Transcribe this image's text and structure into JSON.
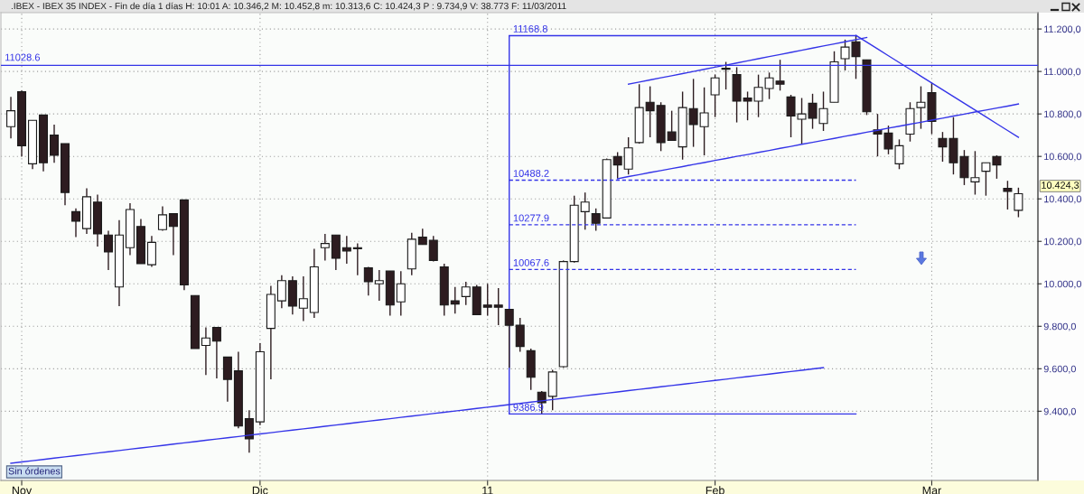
{
  "chart_data": {
    "type": "candlestick",
    "title": ".IBEX - IBEX 35 INDEX - Fin de día 1 días H: 10:01 A: 10.346,2 M: 10.452,8 m: 10.313,6 C: 10.424,3 P : 9.734,9 V: 38.773 F: 11/03/2011",
    "categories": [
      null,
      "Nov",
      null,
      null,
      null,
      null,
      null,
      null,
      null,
      null,
      null,
      null,
      null,
      null,
      null,
      null,
      null,
      null,
      null,
      null,
      null,
      null,
      null,
      "Dic",
      null,
      null,
      null,
      null,
      null,
      null,
      null,
      null,
      null,
      null,
      null,
      null,
      null,
      null,
      null,
      null,
      null,
      null,
      null,
      null,
      "11",
      null,
      null,
      null,
      null,
      null,
      null,
      null,
      null,
      null,
      null,
      null,
      null,
      null,
      null,
      null,
      null,
      null,
      null,
      null,
      null,
      "Feb",
      null,
      null,
      null,
      null,
      null,
      null,
      null,
      null,
      null,
      null,
      null,
      null,
      null,
      null,
      null,
      null,
      null,
      null,
      null,
      "Mar",
      null,
      null,
      null,
      null,
      null,
      null,
      null,
      null
    ],
    "ohlc": [
      [
        10740,
        10880,
        10685,
        10815
      ],
      [
        10905,
        10910,
        10600,
        10650
      ],
      [
        10565,
        10770,
        10540,
        10770
      ],
      [
        10795,
        10795,
        10530,
        10570
      ],
      [
        10700,
        10750,
        10570,
        10605
      ],
      [
        10660,
        10660,
        10370,
        10430
      ],
      [
        10340,
        10355,
        10220,
        10295
      ],
      [
        10260,
        10450,
        10235,
        10410
      ],
      [
        10385,
        10420,
        10175,
        10235
      ],
      [
        10230,
        10250,
        10065,
        10150
      ],
      [
        9985,
        10300,
        9895,
        10230
      ],
      [
        10170,
        10380,
        10135,
        10350
      ],
      [
        10270,
        10305,
        10095,
        10095
      ],
      [
        10090,
        10225,
        10080,
        10195
      ],
      [
        10255,
        10365,
        10250,
        10325
      ],
      [
        10330,
        10330,
        10135,
        10270
      ],
      [
        10395,
        10395,
        9970,
        9995
      ],
      [
        9945,
        9945,
        9695,
        9695
      ],
      [
        9710,
        9795,
        9570,
        9745
      ],
      [
        9795,
        9795,
        9555,
        9730
      ],
      [
        9655,
        9655,
        9445,
        9550
      ],
      [
        9590,
        9680,
        9320,
        9330
      ],
      [
        9365,
        9405,
        9205,
        9270
      ],
      [
        9350,
        9720,
        9335,
        9680
      ],
      [
        9790,
        9990,
        9550,
        9950
      ],
      [
        9920,
        10040,
        9885,
        10015
      ],
      [
        10015,
        10035,
        9855,
        9895
      ],
      [
        9885,
        10035,
        9825,
        9930
      ],
      [
        9865,
        10165,
        9840,
        10080
      ],
      [
        10170,
        10235,
        10110,
        10190
      ],
      [
        10230,
        10230,
        10065,
        10120
      ],
      [
        10170,
        10225,
        10095,
        10155
      ],
      [
        10170,
        10190,
        10040,
        10165
      ],
      [
        10075,
        10080,
        9945,
        10010
      ],
      [
        10000,
        10065,
        9920,
        10015
      ],
      [
        10060,
        10060,
        9850,
        9900
      ],
      [
        9915,
        10060,
        9850,
        10000
      ],
      [
        10070,
        10240,
        10040,
        10210
      ],
      [
        10220,
        10260,
        10185,
        10185
      ],
      [
        10205,
        10225,
        10105,
        10110
      ],
      [
        10080,
        10095,
        9850,
        9900
      ],
      [
        9920,
        9985,
        9860,
        9905
      ],
      [
        9940,
        10010,
        9900,
        9985
      ],
      [
        9985,
        9995,
        9855,
        9855
      ],
      [
        9900,
        10000,
        9850,
        9890
      ],
      [
        9900,
        9980,
        9805,
        9890
      ],
      [
        9880,
        9880,
        9605,
        9805
      ],
      [
        9805,
        9840,
        9680,
        9705
      ],
      [
        9685,
        9695,
        9500,
        9560
      ],
      [
        9490,
        9495,
        9386.9,
        9440
      ],
      [
        9470,
        9595,
        9405,
        9585
      ],
      [
        9610,
        10110,
        9605,
        10105
      ],
      [
        10105,
        10415,
        10100,
        10370
      ],
      [
        10340,
        10430,
        10255,
        10385
      ],
      [
        10330,
        10355,
        10250,
        10285
      ],
      [
        10310,
        10590,
        10310,
        10585
      ],
      [
        10600,
        10620,
        10495,
        10560
      ],
      [
        10540,
        10690,
        10515,
        10640
      ],
      [
        10665,
        10940,
        10660,
        10830
      ],
      [
        10855,
        10930,
        10690,
        10815
      ],
      [
        10840,
        10855,
        10625,
        10665
      ],
      [
        10715,
        10815,
        10675,
        10675
      ],
      [
        10645,
        10905,
        10585,
        10830
      ],
      [
        10825,
        10965,
        10645,
        10750
      ],
      [
        10740,
        10925,
        10605,
        10805
      ],
      [
        10890,
        10985,
        10785,
        10970
      ],
      [
        11010,
        11045,
        10915,
        11015
      ],
      [
        10985,
        11020,
        10760,
        10860
      ],
      [
        10875,
        10905,
        10770,
        10860
      ],
      [
        10860,
        10985,
        10785,
        10925
      ],
      [
        10920,
        10995,
        10870,
        10970
      ],
      [
        10955,
        11055,
        10910,
        10940
      ],
      [
        10880,
        10890,
        10690,
        10790
      ],
      [
        10775,
        10875,
        10660,
        10800
      ],
      [
        10850,
        10895,
        10730,
        10780
      ],
      [
        10755,
        10905,
        10720,
        10825
      ],
      [
        10855,
        11095,
        10855,
        11045
      ],
      [
        11060,
        11150,
        11005,
        11115
      ],
      [
        11140,
        11168.8,
        10965,
        11070
      ],
      [
        11055,
        11055,
        10795,
        10810
      ],
      [
        10725,
        10800,
        10600,
        10705
      ],
      [
        10710,
        10745,
        10610,
        10635
      ],
      [
        10565,
        10680,
        10540,
        10650
      ],
      [
        10705,
        10855,
        10670,
        10825
      ],
      [
        10830,
        10930,
        10730,
        10855
      ],
      [
        10900,
        10945,
        10705,
        10765
      ],
      [
        10685,
        10715,
        10575,
        10645
      ],
      [
        10685,
        10785,
        10515,
        10570
      ],
      [
        10600,
        10630,
        10465,
        10500
      ],
      [
        10480,
        10625,
        10420,
        10500
      ],
      [
        10530,
        10570,
        10415,
        10570
      ],
      [
        10600,
        10605,
        10495,
        10560
      ],
      [
        10450,
        10485,
        10350,
        10435
      ],
      [
        10346.2,
        10452.8,
        10313.6,
        10424.3
      ]
    ],
    "colors": [
      "#ffffff",
      "#2d1c20",
      "#ffffff",
      "#2d1c20",
      "#2d1c20",
      "#2d1c20",
      "#2d1c20",
      "#ffffff",
      "#2d1c20",
      "#2d1c20",
      "#ffffff",
      "#ffffff",
      "#2d1c20",
      "#ffffff",
      "#ffffff",
      "#2d1c20",
      "#2d1c20",
      "#2d1c20",
      "#ffffff",
      "#2d1c20",
      "#2d1c20",
      "#2d1c20",
      "#2d1c20",
      "#ffffff",
      "#ffffff",
      "#ffffff",
      "#2d1c20",
      "#ffffff",
      "#ffffff",
      "#ffffff",
      "#2d1c20",
      "#2d1c20",
      "#2d1c20",
      "#2d1c20",
      "#ffffff",
      "#2d1c20",
      "#ffffff",
      "#ffffff",
      "#2d1c20",
      "#2d1c20",
      "#2d1c20",
      "#2d1c20",
      "#ffffff",
      "#2d1c20",
      "#2d1c20",
      "#2d1c20",
      "#2d1c20",
      "#2d1c20",
      "#2d1c20",
      "#2d1c20",
      "#ffffff",
      "#ffffff",
      "#ffffff",
      "#ffffff",
      "#2d1c20",
      "#ffffff",
      "#2d1c20",
      "#ffffff",
      "#ffffff",
      "#2d1c20",
      "#2d1c20",
      "#2d1c20",
      "#ffffff",
      "#2d1c20",
      "#ffffff",
      "#ffffff",
      "#ffffff",
      "#2d1c20",
      "#2d1c20",
      "#ffffff",
      "#ffffff",
      "#2d1c20",
      "#2d1c20",
      "#ffffff",
      "#2d1c20",
      "#ffffff",
      "#ffffff",
      "#ffffff",
      "#2d1c20",
      "#2d1c20",
      "#2d1c20",
      "#2d1c20",
      "#ffffff",
      "#ffffff",
      "#ffffff",
      "#2d1c20",
      "#2d1c20",
      "#2d1c20",
      "#2d1c20",
      "#ffffff",
      "#ffffff",
      "#2d1c20",
      "#2d1c20",
      "#ffffff"
    ],
    "series": [
      {
        "type": "line",
        "color": "#3434e8",
        "values": [
          9155,
          9161,
          9167,
          9173,
          9179,
          9185,
          9191,
          9197,
          9203,
          9209,
          9215,
          9221,
          9227,
          9233,
          9239,
          9245,
          9251,
          9257,
          9263,
          9269,
          9275,
          9281,
          9287,
          9293,
          9299,
          9305,
          9311,
          9317,
          9323,
          9329,
          9335,
          9341,
          9347,
          9353,
          9359,
          9365,
          9371,
          9377,
          9383,
          9389,
          9395,
          9401,
          9407,
          9413,
          9419,
          9425,
          9431,
          9437,
          9443,
          9449,
          9455,
          9461,
          9467,
          9473,
          9479,
          9485,
          9491,
          9497,
          9503,
          9509,
          9515,
          9521,
          9527,
          9533,
          9539,
          9545,
          9551,
          9557,
          9563,
          9569,
          9575,
          9581,
          9587,
          9593,
          9599,
          9605,
          null,
          null,
          null,
          null,
          null,
          null,
          null,
          null,
          null,
          null,
          null,
          null,
          null,
          null,
          null,
          null,
          null,
          null
        ]
      },
      {
        "type": "line",
        "color": "#3434e8",
        "values": [
          null,
          null,
          null,
          null,
          null,
          null,
          null,
          null,
          null,
          null,
          null,
          null,
          null,
          null,
          null,
          null,
          null,
          null,
          null,
          null,
          null,
          null,
          null,
          null,
          null,
          null,
          null,
          null,
          null,
          null,
          null,
          null,
          null,
          null,
          null,
          null,
          null,
          null,
          null,
          null,
          null,
          null,
          null,
          null,
          null,
          null,
          null,
          null,
          null,
          null,
          null,
          null,
          null,
          null,
          null,
          null,
          10495,
          10505,
          10514,
          10524,
          10533,
          10543,
          10552,
          10562,
          10571,
          10581,
          10590,
          10600,
          10609,
          10619,
          10628,
          10638,
          10647,
          10657,
          10666,
          10676,
          10685,
          10695,
          10704,
          10714,
          10723,
          10733,
          10742,
          10752,
          10761,
          10771,
          10780,
          10790,
          10799,
          10809,
          10818,
          10828,
          10837,
          10847
        ]
      },
      {
        "type": "line",
        "color": "#3434e8",
        "values": [
          null,
          null,
          null,
          null,
          null,
          null,
          null,
          null,
          null,
          null,
          null,
          null,
          null,
          null,
          null,
          null,
          null,
          null,
          null,
          null,
          null,
          null,
          null,
          null,
          null,
          null,
          null,
          null,
          null,
          null,
          null,
          null,
          null,
          null,
          null,
          null,
          null,
          null,
          null,
          null,
          null,
          null,
          null,
          null,
          null,
          null,
          null,
          null,
          null,
          null,
          null,
          null,
          null,
          null,
          null,
          null,
          null,
          10940,
          10950,
          10960,
          10970,
          10980,
          10990,
          11000,
          11010,
          11020,
          11030,
          11040,
          11050,
          11060,
          11070,
          11080,
          11090,
          11100,
          11110,
          11120,
          11130,
          11140,
          11150,
          11160,
          null,
          null,
          null,
          null,
          null,
          null,
          null,
          null,
          null,
          null,
          null,
          null,
          null,
          null
        ]
      },
      {
        "type": "line",
        "color": "#3434e8",
        "values": [
          null,
          null,
          null,
          null,
          null,
          null,
          null,
          null,
          null,
          null,
          null,
          null,
          null,
          null,
          null,
          null,
          null,
          null,
          null,
          null,
          null,
          null,
          null,
          null,
          null,
          null,
          null,
          null,
          null,
          null,
          null,
          null,
          null,
          null,
          null,
          null,
          null,
          null,
          null,
          null,
          null,
          null,
          null,
          null,
          null,
          null,
          null,
          null,
          null,
          null,
          null,
          null,
          null,
          null,
          null,
          null,
          null,
          null,
          null,
          null,
          null,
          null,
          null,
          null,
          null,
          null,
          null,
          null,
          null,
          null,
          null,
          null,
          null,
          null,
          null,
          null,
          null,
          null,
          11170,
          11138,
          11106,
          11074,
          11042,
          11010,
          10978,
          10946,
          10914,
          10882,
          10850,
          10818,
          10786,
          10754,
          10722,
          10690
        ]
      },
      {
        "type": "line",
        "name": "11168.8",
        "color": "#3434e8",
        "values": [
          null,
          null,
          null,
          null,
          null,
          null,
          null,
          null,
          null,
          null,
          null,
          null,
          null,
          null,
          null,
          null,
          null,
          null,
          null,
          null,
          null,
          null,
          null,
          null,
          null,
          null,
          null,
          null,
          null,
          null,
          null,
          null,
          null,
          null,
          null,
          null,
          null,
          null,
          null,
          null,
          null,
          null,
          null,
          null,
          null,
          null,
          11168.8,
          11168.8,
          11168.8,
          11168.8,
          11168.8,
          11168.8,
          11168.8,
          11168.8,
          11168.8,
          11168.8,
          11168.8,
          11168.8,
          11168.8,
          11168.8,
          11168.8,
          11168.8,
          11168.8,
          11168.8,
          11168.8,
          11168.8,
          11168.8,
          11168.8,
          11168.8,
          11168.8,
          11168.8,
          11168.8,
          11168.8,
          11168.8,
          11168.8,
          11168.8,
          11168.8,
          11168.8,
          11168.8,
          null,
          null,
          null,
          null,
          null,
          null,
          null,
          null,
          null,
          null,
          null,
          null,
          null,
          null,
          null
        ],
        "errors": [
          null,
          null,
          null,
          null,
          null,
          null,
          null,
          null,
          null,
          null,
          null,
          null,
          null,
          null,
          null,
          null,
          null,
          null,
          null,
          null,
          null,
          null,
          null,
          null,
          null,
          null,
          null,
          null,
          null,
          null,
          null,
          null,
          null,
          null,
          null,
          null,
          null,
          null,
          null,
          null,
          null,
          null,
          null,
          null,
          null,
          null,
          [
            9386.9,
            11168.8
          ],
          null,
          null,
          null,
          null,
          null,
          null,
          null,
          null,
          null,
          null,
          null,
          null,
          null,
          null,
          null,
          null,
          null,
          null,
          null,
          null,
          null,
          null,
          null,
          null,
          null,
          null,
          null,
          null,
          null,
          null,
          null,
          null,
          null,
          null,
          null,
          null,
          null,
          null,
          null,
          null,
          null,
          null,
          null,
          null,
          null,
          null,
          null
        ]
      },
      {
        "type": "line",
        "name": "10488.2",
        "color": "#3434e8",
        "line_style": "dashed",
        "values": [
          null,
          null,
          null,
          null,
          null,
          null,
          null,
          null,
          null,
          null,
          null,
          null,
          null,
          null,
          null,
          null,
          null,
          null,
          null,
          null,
          null,
          null,
          null,
          null,
          null,
          null,
          null,
          null,
          null,
          null,
          null,
          null,
          null,
          null,
          null,
          null,
          null,
          null,
          null,
          null,
          null,
          null,
          null,
          null,
          null,
          null,
          10488.2,
          10488.2,
          10488.2,
          10488.2,
          10488.2,
          10488.2,
          10488.2,
          10488.2,
          10488.2,
          10488.2,
          10488.2,
          10488.2,
          10488.2,
          10488.2,
          10488.2,
          10488.2,
          10488.2,
          10488.2,
          10488.2,
          10488.2,
          10488.2,
          10488.2,
          10488.2,
          10488.2,
          10488.2,
          10488.2,
          10488.2,
          10488.2,
          10488.2,
          10488.2,
          10488.2,
          10488.2,
          10488.2,
          null,
          null,
          null,
          null,
          null,
          null,
          null,
          null,
          null,
          null,
          null,
          null,
          null,
          null,
          null
        ]
      },
      {
        "type": "line",
        "name": "10277.9",
        "color": "#3434e8",
        "line_style": "dashed",
        "values": [
          null,
          null,
          null,
          null,
          null,
          null,
          null,
          null,
          null,
          null,
          null,
          null,
          null,
          null,
          null,
          null,
          null,
          null,
          null,
          null,
          null,
          null,
          null,
          null,
          null,
          null,
          null,
          null,
          null,
          null,
          null,
          null,
          null,
          null,
          null,
          null,
          null,
          null,
          null,
          null,
          null,
          null,
          null,
          null,
          null,
          null,
          10277.9,
          10277.9,
          10277.9,
          10277.9,
          10277.9,
          10277.9,
          10277.9,
          10277.9,
          10277.9,
          10277.9,
          10277.9,
          10277.9,
          10277.9,
          10277.9,
          10277.9,
          10277.9,
          10277.9,
          10277.9,
          10277.9,
          10277.9,
          10277.9,
          10277.9,
          10277.9,
          10277.9,
          10277.9,
          10277.9,
          10277.9,
          10277.9,
          10277.9,
          10277.9,
          10277.9,
          10277.9,
          10277.9,
          null,
          null,
          null,
          null,
          null,
          null,
          null,
          null,
          null,
          null,
          null,
          null,
          null,
          null,
          null
        ]
      },
      {
        "type": "line",
        "name": "10067.6",
        "color": "#3434e8",
        "line_style": "dashed",
        "values": [
          null,
          null,
          null,
          null,
          null,
          null,
          null,
          null,
          null,
          null,
          null,
          null,
          null,
          null,
          null,
          null,
          null,
          null,
          null,
          null,
          null,
          null,
          null,
          null,
          null,
          null,
          null,
          null,
          null,
          null,
          null,
          null,
          null,
          null,
          null,
          null,
          null,
          null,
          null,
          null,
          null,
          null,
          null,
          null,
          null,
          null,
          10067.6,
          10067.6,
          10067.6,
          10067.6,
          10067.6,
          10067.6,
          10067.6,
          10067.6,
          10067.6,
          10067.6,
          10067.6,
          10067.6,
          10067.6,
          10067.6,
          10067.6,
          10067.6,
          10067.6,
          10067.6,
          10067.6,
          10067.6,
          10067.6,
          10067.6,
          10067.6,
          10067.6,
          10067.6,
          10067.6,
          10067.6,
          10067.6,
          10067.6,
          10067.6,
          10067.6,
          10067.6,
          10067.6,
          null,
          null,
          null,
          null,
          null,
          null,
          null,
          null,
          null,
          null,
          null,
          null,
          null,
          null,
          null
        ]
      },
      {
        "type": "line",
        "name": "9386.9",
        "color": "#3434e8",
        "values": [
          null,
          null,
          null,
          null,
          null,
          null,
          null,
          null,
          null,
          null,
          null,
          null,
          null,
          null,
          null,
          null,
          null,
          null,
          null,
          null,
          null,
          null,
          null,
          null,
          null,
          null,
          null,
          null,
          null,
          null,
          null,
          null,
          null,
          null,
          null,
          null,
          null,
          null,
          null,
          null,
          null,
          null,
          null,
          null,
          null,
          null,
          9386.9,
          9386.9,
          9386.9,
          9386.9,
          9386.9,
          9386.9,
          9386.9,
          9386.9,
          9386.9,
          9386.9,
          9386.9,
          9386.9,
          9386.9,
          9386.9,
          9386.9,
          9386.9,
          9386.9,
          9386.9,
          9386.9,
          9386.9,
          9386.9,
          9386.9,
          9386.9,
          9386.9,
          9386.9,
          9386.9,
          9386.9,
          9386.9,
          9386.9,
          9386.9,
          9386.9,
          9386.9,
          9386.9,
          null,
          null,
          null,
          null,
          null,
          null,
          null,
          null,
          null,
          null,
          null,
          null,
          null,
          null,
          null
        ]
      }
    ],
    "ref_lines": [
      {
        "axis": "y",
        "value": 11028.6,
        "label": "11028.6",
        "color": "#3434e8"
      }
    ],
    "annotations": [
      "10.424,3",
      "Sin órdenes"
    ],
    "ylim": [
      9074,
      11277
    ],
    "yticks": [
      {
        "value": 9400,
        "label": "9.400,0"
      },
      {
        "value": 9600,
        "label": "9.600,0"
      },
      {
        "value": 9800,
        "label": "9.800,0"
      },
      {
        "value": 10000,
        "label": "10.000,0"
      },
      {
        "value": 10200,
        "label": "10.200,0"
      },
      {
        "value": 10400,
        "label": "10.400,0"
      },
      {
        "value": 10600,
        "label": "10.600,0"
      },
      {
        "value": 10800,
        "label": "10.800,0"
      },
      {
        "value": 11000,
        "label": "11.000,0"
      },
      {
        "value": 11200,
        "label": "11.200,0"
      }
    ],
    "grid": true
  }
}
